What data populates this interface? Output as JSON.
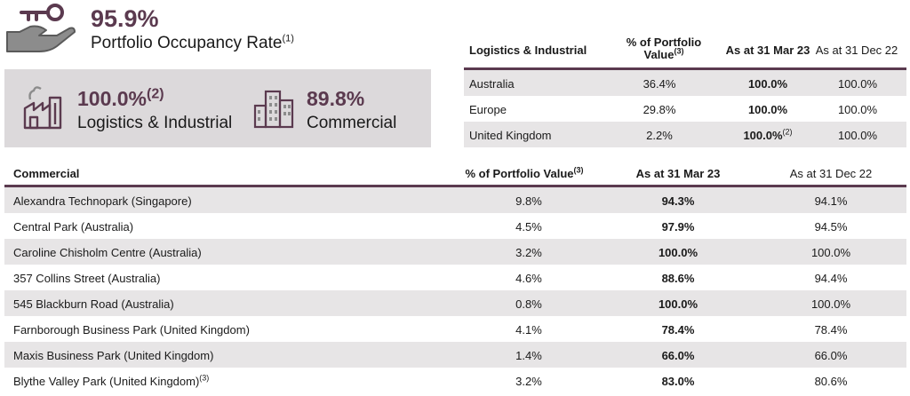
{
  "header": {
    "occupancy_value": "95.9%",
    "occupancy_label": "Portfolio Occupancy Rate",
    "occupancy_note": "(1)"
  },
  "summary": {
    "logistics_value": "100.0%",
    "logistics_note": "(2)",
    "logistics_label": "Logistics & Industrial",
    "commercial_value": "89.8%",
    "commercial_label": "Commercial"
  },
  "li_table": {
    "headers": {
      "name": "Logistics & Industrial",
      "value_line1": "% of Portfolio",
      "value_line2": "Value",
      "value_note": "(3)",
      "current": "As at 31 Mar 23",
      "previous": "As at 31 Dec 22"
    },
    "rows": [
      {
        "name": "Australia",
        "value": "36.4%",
        "current": "100.0%",
        "current_note": "",
        "previous": "100.0%"
      },
      {
        "name": "Europe",
        "value": "29.8%",
        "current": "100.0%",
        "current_note": "",
        "previous": "100.0%"
      },
      {
        "name": "United Kingdom",
        "value": "2.2%",
        "current": "100.0%",
        "current_note": "(2)",
        "previous": "100.0%"
      }
    ]
  },
  "com_table": {
    "headers": {
      "name": "Commercial",
      "value": "% of Portfolio Value",
      "value_note": "(3)",
      "current": "As at 31 Mar 23",
      "previous": "As at 31 Dec 22"
    },
    "rows": [
      {
        "name": "Alexandra Technopark (Singapore)",
        "name_note": "",
        "value": "9.8%",
        "current": "94.3%",
        "previous": "94.1%"
      },
      {
        "name": "Central Park (Australia)",
        "name_note": "",
        "value": "4.5%",
        "current": "97.9%",
        "previous": "94.5%"
      },
      {
        "name": "Caroline Chisholm Centre (Australia)",
        "name_note": "",
        "value": "3.2%",
        "current": "100.0%",
        "previous": "100.0%"
      },
      {
        "name": "357 Collins Street (Australia)",
        "name_note": "",
        "value": "4.6%",
        "current": "88.6%",
        "previous": "94.4%"
      },
      {
        "name": "545 Blackburn Road (Australia)",
        "name_note": "",
        "value": "0.8%",
        "current": "100.0%",
        "previous": "100.0%"
      },
      {
        "name": "Farnborough Business Park (United Kingdom)",
        "name_note": "",
        "value": "4.1%",
        "current": "78.4%",
        "previous": "78.4%"
      },
      {
        "name": "Maxis Business Park (United Kingdom)",
        "name_note": "",
        "value": "1.4%",
        "current": "66.0%",
        "previous": "66.0%"
      },
      {
        "name": "Blythe Valley Park (United Kingdom)",
        "name_note": "(3)",
        "value": "3.2%",
        "current": "83.0%",
        "previous": "80.6%"
      }
    ]
  },
  "icons": {
    "hand_key": "hand-key-icon",
    "factory": "factory-icon",
    "building": "office-building-icon"
  },
  "colors": {
    "accent": "#5b3a4f",
    "shade": "#e7e5e6",
    "box": "#dcd9db"
  }
}
